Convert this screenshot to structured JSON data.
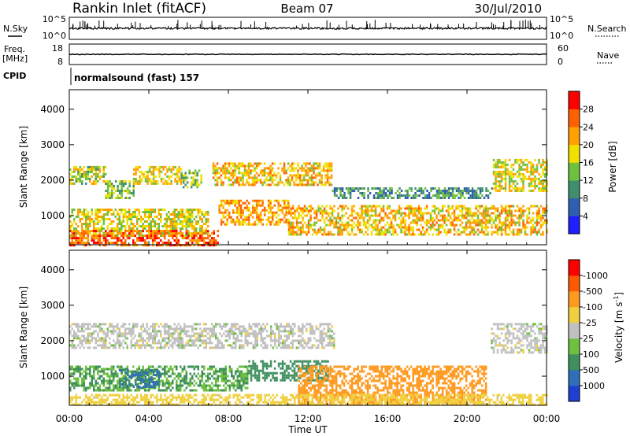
{
  "header": {
    "title": "Rankin Inlet (fitACF)",
    "beam": "Beam 07",
    "date": "30/Jul/2010"
  },
  "strip": {
    "nsky_label": "N.Sky",
    "nsky_ticks": [
      "10^5",
      "10^0"
    ],
    "nsearch_label": "N.Search",
    "nsearch_ticks": [
      "10^5",
      "10^0"
    ],
    "freq_label": "Freq.",
    "freq_unit": "[MHz]",
    "freq_ticks": [
      "18",
      "8"
    ],
    "nave_label": "Nave",
    "nave_ticks": [
      "60",
      "0"
    ],
    "cpid_label": "CPID",
    "cpid_value": "normalsound (fast) 157"
  },
  "xaxis": {
    "label": "Time UT",
    "ticks": [
      "00:00",
      "04:00",
      "08:00",
      "12:00",
      "16:00",
      "20:00",
      "00:00"
    ]
  },
  "chart_data": [
    {
      "type": "heatmap",
      "quantity": "power",
      "ylabel": "Slant Range [km]",
      "yticks": [
        1000,
        2000,
        3000,
        4000
      ],
      "ylim": [
        180,
        4550
      ],
      "xlim_hours": [
        0,
        24
      ],
      "colorbar_label": "Power [dB]",
      "colorbar_ticks": [
        "4",
        "8",
        "12",
        "16",
        "20",
        "24",
        "28"
      ],
      "colorbar_colors": [
        "#1f1fff",
        "#2f5fb0",
        "#3f8f6f",
        "#6fc03f",
        "#f0e000",
        "#ffa000",
        "#ff6000",
        "#ff0000"
      ],
      "echo_bands": [
        {
          "t": [
            0.0,
            1.8
          ],
          "range": [
            1900,
            2400
          ],
          "level": 16
        },
        {
          "t": [
            1.8,
            3.2
          ],
          "range": [
            1500,
            2000
          ],
          "level": 14
        },
        {
          "t": [
            3.2,
            5.6
          ],
          "range": [
            1900,
            2400
          ],
          "level": 18
        },
        {
          "t": [
            5.6,
            6.6
          ],
          "range": [
            1800,
            2300
          ],
          "level": 14
        },
        {
          "t": [
            7.2,
            13.2
          ],
          "range": [
            1900,
            2500
          ],
          "level": 20
        },
        {
          "t": [
            13.2,
            21.3
          ],
          "range": [
            1500,
            1800
          ],
          "level": 10
        },
        {
          "t": [
            21.3,
            24.0
          ],
          "range": [
            1700,
            2600
          ],
          "level": 18
        },
        {
          "t": [
            0.0,
            7.0
          ],
          "range": [
            450,
            1200
          ],
          "level": 18
        },
        {
          "t": [
            7.5,
            11.0
          ],
          "range": [
            750,
            1450
          ],
          "level": 22
        },
        {
          "t": [
            11.0,
            24.0
          ],
          "range": [
            500,
            1300
          ],
          "level": 20
        },
        {
          "t": [
            0.0,
            7.5
          ],
          "range": [
            200,
            600
          ],
          "level": 26
        }
      ]
    },
    {
      "type": "heatmap",
      "quantity": "velocity",
      "ylabel": "Slant Range [km]",
      "yticks": [
        1000,
        2000,
        3000,
        4000
      ],
      "ylim": [
        180,
        4550
      ],
      "xlim_hours": [
        0,
        24
      ],
      "colorbar_label": "Velocity [m s",
      "colorbar_label_sup": "-1",
      "colorbar_label_end": "]",
      "colorbar_ticks": [
        "1000",
        "500",
        "100",
        "25",
        "-25",
        "-100",
        "-500",
        "-1000"
      ],
      "colorbar_colors": [
        "#1f3fd0",
        "#2f6fb8",
        "#3f8f5f",
        "#6fc040",
        "#c0c0c0",
        "#f0d040",
        "#ff9a20",
        "#ff5a00",
        "#ff0000"
      ],
      "echo_bands": [
        {
          "t": [
            0.0,
            13.3
          ],
          "range": [
            1800,
            2500
          ],
          "level": 0
        },
        {
          "t": [
            21.2,
            24.0
          ],
          "range": [
            1700,
            2500
          ],
          "level": 0
        },
        {
          "t": [
            0.0,
            9.0
          ],
          "range": [
            600,
            1300
          ],
          "level": 100
        },
        {
          "t": [
            2.5,
            4.5
          ],
          "range": [
            700,
            1200
          ],
          "level": 600
        },
        {
          "t": [
            9.0,
            13.0
          ],
          "range": [
            900,
            1450
          ],
          "level": 300
        },
        {
          "t": [
            11.5,
            21.0
          ],
          "range": [
            200,
            1300
          ],
          "level": -300
        },
        {
          "t": [
            0.0,
            24.0
          ],
          "range": [
            200,
            500
          ],
          "level": -60
        }
      ]
    }
  ]
}
